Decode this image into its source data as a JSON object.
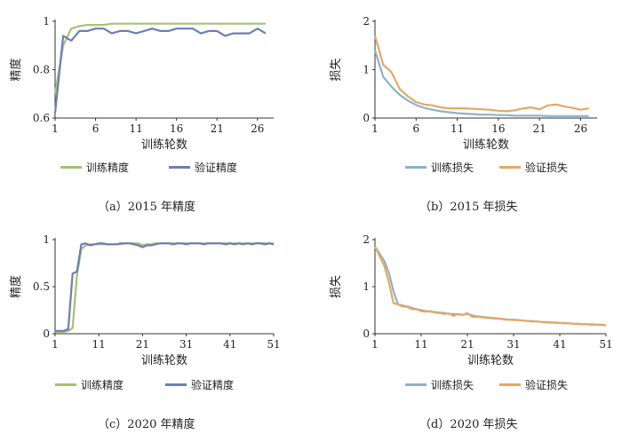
{
  "chart_data": [
    {
      "type": "line",
      "caption": "（a）2015 年精度",
      "xlabel": "训练轮数",
      "ylabel": "精度",
      "xlim": [
        1,
        28
      ],
      "ylim": [
        0.6,
        1.0
      ],
      "x_ticks": [
        "1",
        "6",
        "11",
        "16",
        "21",
        "26"
      ],
      "x_tick_values": [
        1,
        6,
        11,
        16,
        21,
        26
      ],
      "y_ticks": [
        "0.6",
        "0.8",
        "1"
      ],
      "y_tick_values": [
        0.6,
        0.8,
        1.0
      ],
      "legend_position": "bottom",
      "series": [
        {
          "name": "训练精度",
          "color": "#a6c079",
          "x": [
            1,
            2,
            3,
            4,
            5,
            6,
            7,
            8,
            9,
            10,
            11,
            12,
            13,
            14,
            15,
            16,
            17,
            18,
            19,
            20,
            21,
            22,
            23,
            24,
            25,
            26,
            27
          ],
          "values": [
            0.7,
            0.9,
            0.97,
            0.98,
            0.985,
            0.985,
            0.985,
            0.99,
            0.99,
            0.99,
            0.99,
            0.99,
            0.99,
            0.99,
            0.99,
            0.99,
            0.99,
            0.99,
            0.99,
            0.99,
            0.99,
            0.99,
            0.99,
            0.99,
            0.99,
            0.99,
            0.99
          ]
        },
        {
          "name": "验证精度",
          "color": "#6d7fb2",
          "x": [
            1,
            2,
            3,
            4,
            5,
            6,
            7,
            8,
            9,
            10,
            11,
            12,
            13,
            14,
            15,
            16,
            17,
            18,
            19,
            20,
            21,
            22,
            23,
            24,
            25,
            26,
            27
          ],
          "values": [
            0.62,
            0.94,
            0.92,
            0.96,
            0.96,
            0.97,
            0.97,
            0.95,
            0.96,
            0.96,
            0.95,
            0.96,
            0.97,
            0.96,
            0.96,
            0.97,
            0.97,
            0.97,
            0.95,
            0.96,
            0.96,
            0.94,
            0.95,
            0.95,
            0.95,
            0.97,
            0.95
          ]
        }
      ]
    },
    {
      "type": "line",
      "caption": "（b）2015 年损失",
      "xlabel": "训练轮数",
      "ylabel": "损失",
      "xlim": [
        1,
        28
      ],
      "ylim": [
        0,
        2
      ],
      "x_ticks": [
        "1",
        "6",
        "11",
        "16",
        "21",
        "26"
      ],
      "x_tick_values": [
        1,
        6,
        11,
        16,
        21,
        26
      ],
      "y_ticks": [
        "0",
        "1",
        "2"
      ],
      "y_tick_values": [
        0,
        1,
        2
      ],
      "legend_position": "bottom",
      "series": [
        {
          "name": "训练损失",
          "color": "#8fb1c8",
          "x": [
            1,
            2,
            3,
            4,
            5,
            6,
            7,
            8,
            9,
            10,
            11,
            12,
            13,
            14,
            15,
            16,
            17,
            18,
            19,
            20,
            21,
            22,
            23,
            24,
            25,
            26,
            27
          ],
          "values": [
            1.4,
            0.85,
            0.65,
            0.48,
            0.36,
            0.27,
            0.21,
            0.17,
            0.14,
            0.12,
            0.1,
            0.09,
            0.08,
            0.07,
            0.07,
            0.06,
            0.06,
            0.05,
            0.05,
            0.05,
            0.05,
            0.04,
            0.04,
            0.04,
            0.04,
            0.04,
            0.04
          ]
        },
        {
          "name": "验证损失",
          "color": "#e3a866",
          "x": [
            1,
            2,
            3,
            4,
            5,
            6,
            7,
            8,
            9,
            10,
            11,
            12,
            13,
            14,
            15,
            16,
            17,
            18,
            19,
            20,
            21,
            22,
            23,
            24,
            25,
            26,
            27
          ],
          "values": [
            1.7,
            1.1,
            0.95,
            0.6,
            0.45,
            0.33,
            0.28,
            0.26,
            0.22,
            0.2,
            0.2,
            0.2,
            0.19,
            0.18,
            0.17,
            0.15,
            0.14,
            0.16,
            0.2,
            0.22,
            0.18,
            0.26,
            0.28,
            0.24,
            0.21,
            0.17,
            0.2
          ]
        }
      ]
    },
    {
      "type": "line",
      "caption": "（c）2020 年精度",
      "xlabel": "训练轮数",
      "ylabel": "精度",
      "xlim": [
        1,
        51
      ],
      "ylim": [
        0,
        1.0
      ],
      "x_ticks": [
        "1",
        "11",
        "21",
        "31",
        "41",
        "51"
      ],
      "x_tick_values": [
        1,
        11,
        21,
        31,
        41,
        51
      ],
      "y_ticks": [
        "0",
        "0.5",
        "1"
      ],
      "y_tick_values": [
        0,
        0.5,
        1.0
      ],
      "legend_position": "bottom",
      "series": [
        {
          "name": "训练精度",
          "color": "#a6c079",
          "x": [
            1,
            2,
            3,
            4,
            5,
            6,
            7,
            8,
            9,
            10,
            11,
            12,
            13,
            14,
            15,
            16,
            17,
            18,
            19,
            20,
            21,
            22,
            23,
            24,
            25,
            26,
            27,
            28,
            29,
            30,
            31,
            32,
            33,
            34,
            35,
            36,
            37,
            38,
            39,
            40,
            41,
            42,
            43,
            44,
            45,
            46,
            47,
            48,
            49,
            50,
            51
          ],
          "values": [
            0.02,
            0.02,
            0.02,
            0.03,
            0.06,
            0.62,
            0.9,
            0.94,
            0.95,
            0.95,
            0.95,
            0.95,
            0.95,
            0.95,
            0.95,
            0.95,
            0.96,
            0.96,
            0.96,
            0.96,
            0.94,
            0.95,
            0.95,
            0.96,
            0.96,
            0.96,
            0.96,
            0.96,
            0.96,
            0.96,
            0.96,
            0.96,
            0.96,
            0.96,
            0.96,
            0.96,
            0.96,
            0.96,
            0.96,
            0.96,
            0.96,
            0.96,
            0.96,
            0.96,
            0.96,
            0.96,
            0.96,
            0.96,
            0.96,
            0.96,
            0.96
          ]
        },
        {
          "name": "验证精度",
          "color": "#6d7fb2",
          "x": [
            1,
            2,
            3,
            4,
            5,
            6,
            7,
            8,
            9,
            10,
            11,
            12,
            13,
            14,
            15,
            16,
            17,
            18,
            19,
            20,
            21,
            22,
            23,
            24,
            25,
            26,
            27,
            28,
            29,
            30,
            31,
            32,
            33,
            34,
            35,
            36,
            37,
            38,
            39,
            40,
            41,
            42,
            43,
            44,
            45,
            46,
            47,
            48,
            49,
            50,
            51
          ],
          "values": [
            0.03,
            0.03,
            0.03,
            0.05,
            0.64,
            0.66,
            0.95,
            0.96,
            0.94,
            0.95,
            0.96,
            0.96,
            0.95,
            0.95,
            0.95,
            0.96,
            0.96,
            0.96,
            0.95,
            0.94,
            0.92,
            0.94,
            0.94,
            0.95,
            0.96,
            0.96,
            0.96,
            0.95,
            0.96,
            0.96,
            0.95,
            0.96,
            0.96,
            0.96,
            0.95,
            0.96,
            0.96,
            0.96,
            0.96,
            0.95,
            0.96,
            0.95,
            0.96,
            0.95,
            0.96,
            0.95,
            0.96,
            0.96,
            0.95,
            0.96,
            0.95
          ]
        }
      ]
    },
    {
      "type": "line",
      "caption": "（d）2020 年损失",
      "xlabel": "训练轮数",
      "ylabel": "损失",
      "xlim": [
        1,
        51
      ],
      "ylim": [
        0,
        2
      ],
      "x_ticks": [
        "1",
        "11",
        "21",
        "31",
        "41",
        "51"
      ],
      "x_tick_values": [
        1,
        11,
        21,
        31,
        41,
        51
      ],
      "y_ticks": [
        "0",
        "1",
        "2"
      ],
      "y_tick_values": [
        0,
        1,
        2
      ],
      "legend_position": "bottom",
      "series": [
        {
          "name": "训练损失",
          "color": "#8fb1c8",
          "x": [
            1,
            2,
            3,
            4,
            5,
            6,
            7,
            8,
            9,
            10,
            11,
            12,
            13,
            14,
            15,
            16,
            17,
            18,
            19,
            20,
            21,
            22,
            23,
            24,
            25,
            26,
            27,
            28,
            29,
            30,
            31,
            32,
            33,
            34,
            35,
            36,
            37,
            38,
            39,
            40,
            41,
            42,
            43,
            44,
            45,
            46,
            47,
            48,
            49,
            50,
            51
          ],
          "values": [
            1.85,
            1.7,
            1.55,
            1.3,
            0.9,
            0.62,
            0.6,
            0.58,
            0.55,
            0.52,
            0.5,
            0.48,
            0.47,
            0.46,
            0.45,
            0.44,
            0.42,
            0.42,
            0.41,
            0.4,
            0.42,
            0.39,
            0.37,
            0.36,
            0.35,
            0.34,
            0.33,
            0.32,
            0.31,
            0.3,
            0.3,
            0.29,
            0.28,
            0.27,
            0.27,
            0.26,
            0.25,
            0.24,
            0.24,
            0.23,
            0.23,
            0.22,
            0.22,
            0.21,
            0.21,
            0.2,
            0.2,
            0.19,
            0.19,
            0.19,
            0.18
          ]
        },
        {
          "name": "验证损失",
          "color": "#e3a866",
          "x": [
            1,
            2,
            3,
            4,
            5,
            6,
            7,
            8,
            9,
            10,
            11,
            12,
            13,
            14,
            15,
            16,
            17,
            18,
            19,
            20,
            21,
            22,
            23,
            24,
            25,
            26,
            27,
            28,
            29,
            30,
            31,
            32,
            33,
            34,
            35,
            36,
            37,
            38,
            39,
            40,
            41,
            42,
            43,
            44,
            45,
            46,
            47,
            48,
            49,
            50,
            51
          ],
          "values": [
            1.85,
            1.65,
            1.45,
            1.1,
            0.65,
            0.62,
            0.58,
            0.57,
            0.52,
            0.52,
            0.48,
            0.47,
            0.48,
            0.45,
            0.44,
            0.42,
            0.43,
            0.38,
            0.42,
            0.4,
            0.44,
            0.36,
            0.36,
            0.35,
            0.34,
            0.33,
            0.32,
            0.32,
            0.3,
            0.3,
            0.29,
            0.29,
            0.28,
            0.27,
            0.26,
            0.26,
            0.25,
            0.25,
            0.24,
            0.24,
            0.23,
            0.23,
            0.22,
            0.21,
            0.21,
            0.2,
            0.2,
            0.2,
            0.19,
            0.19,
            0.18
          ]
        }
      ]
    }
  ]
}
